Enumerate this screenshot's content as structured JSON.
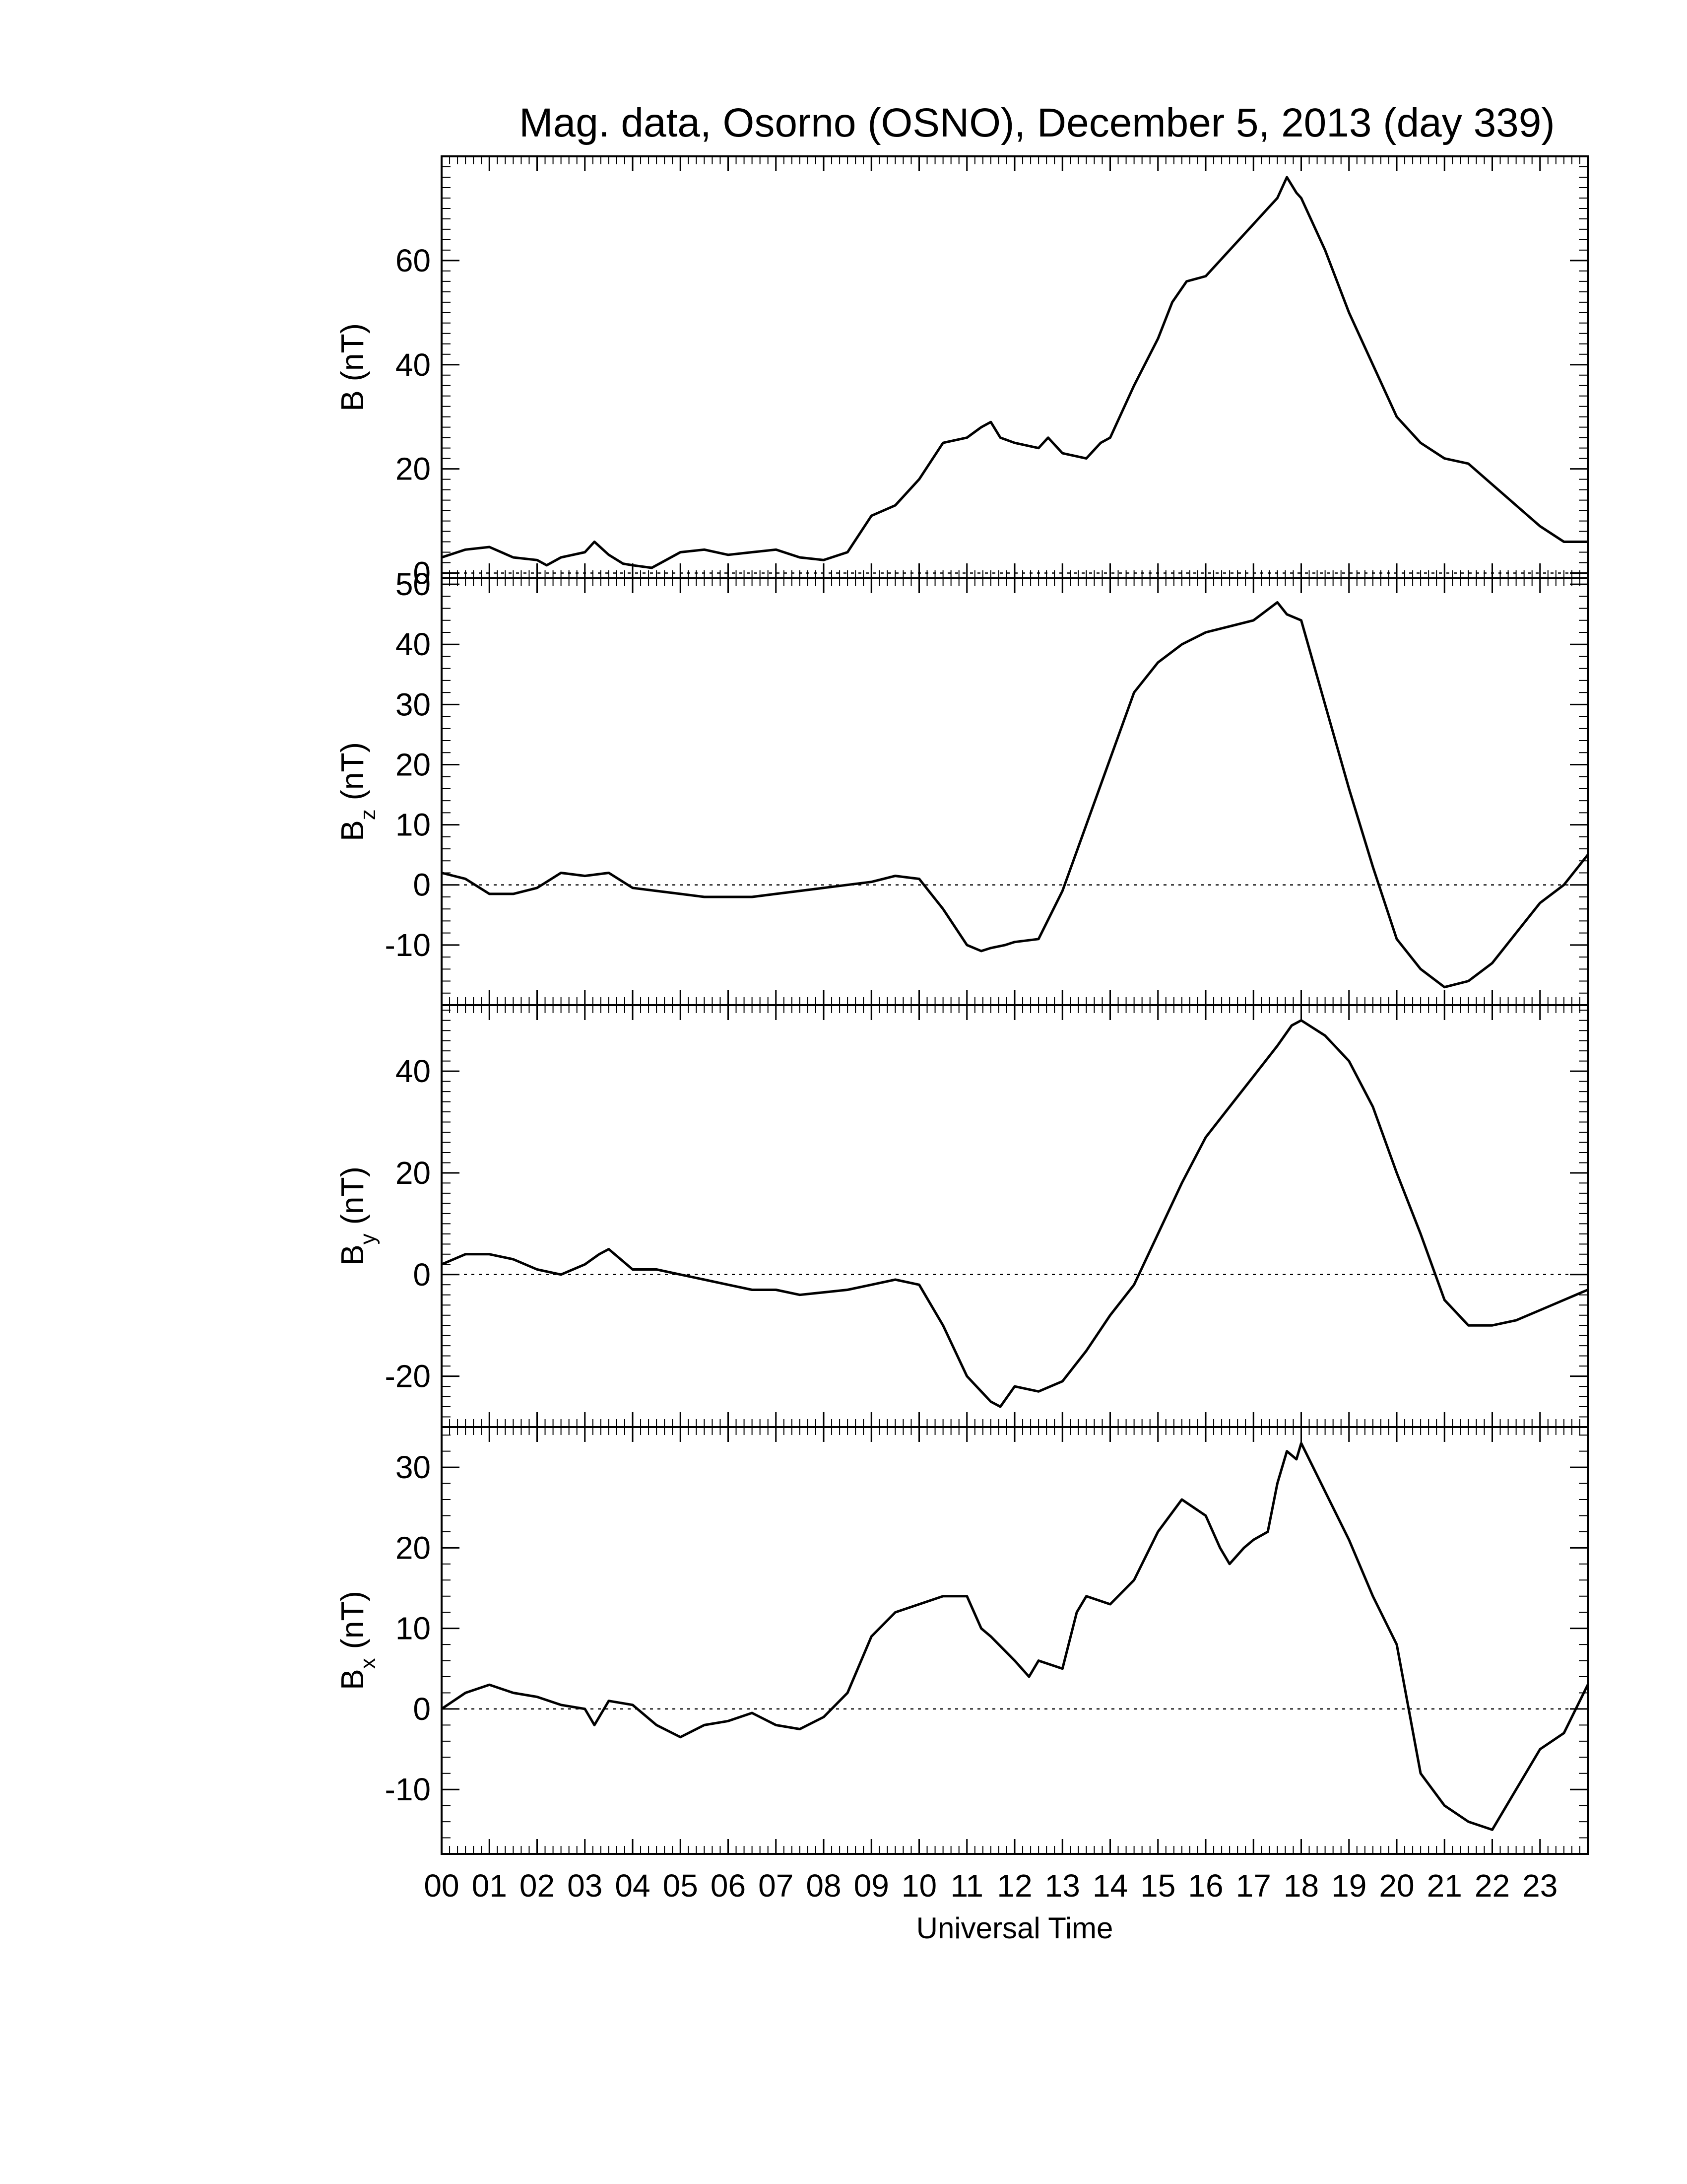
{
  "title": "Mag. data, Osorno (OSNO), December 5, 2013 (day 339)",
  "xlabel": "Universal Time",
  "x_tick_labels": [
    "00",
    "01",
    "02",
    "03",
    "04",
    "05",
    "06",
    "07",
    "08",
    "09",
    "10",
    "11",
    "12",
    "13",
    "14",
    "15",
    "16",
    "17",
    "18",
    "19",
    "20",
    "21",
    "22",
    "23"
  ],
  "line_color": "#000000",
  "chart_data": [
    {
      "type": "line",
      "ylabel_main": "B",
      "ylabel_sub": "",
      "ylabel_unit": "(nT)",
      "xlim": [
        0,
        24
      ],
      "ylim": [
        -1,
        80
      ],
      "yticks": [
        0,
        20,
        40,
        60
      ],
      "zero_line": true,
      "x": [
        0,
        0.5,
        1,
        1.5,
        2,
        2.2,
        2.5,
        3,
        3.2,
        3.5,
        3.8,
        4,
        4.4,
        4.6,
        5,
        5.5,
        6,
        6.5,
        7,
        7.5,
        8,
        8.5,
        9,
        9.5,
        10,
        10.5,
        11,
        11.3,
        11.5,
        11.7,
        12,
        12.5,
        12.7,
        13,
        13.5,
        13.8,
        14,
        14.5,
        15,
        15.3,
        15.6,
        16,
        16.3,
        16.7,
        17,
        17.3,
        17.5,
        17.7,
        17.9,
        18,
        18.5,
        19,
        19.5,
        20,
        20.5,
        21,
        21.5,
        22,
        22.5,
        23,
        23.5,
        24
      ],
      "values": [
        3,
        4.5,
        5,
        3,
        2.5,
        1.5,
        3,
        4,
        6,
        3.5,
        1.8,
        1.5,
        1,
        2,
        4,
        4.5,
        3.5,
        4,
        4.5,
        3,
        2.5,
        4,
        11,
        13,
        18,
        25,
        26,
        28,
        29,
        26,
        25,
        24,
        26,
        23,
        22,
        25,
        26,
        36,
        45,
        52,
        56,
        57,
        60,
        64,
        67,
        70,
        72,
        76,
        73,
        72,
        62,
        50,
        40,
        30,
        25,
        22,
        21,
        17,
        13,
        9,
        6,
        6
      ]
    },
    {
      "type": "line",
      "ylabel_main": "B",
      "ylabel_sub": "z",
      "ylabel_unit": "(nT)",
      "xlim": [
        0,
        24
      ],
      "ylim": [
        -20,
        51
      ],
      "yticks": [
        -10,
        0,
        10,
        20,
        30,
        40,
        50
      ],
      "zero_line": true,
      "x": [
        0,
        0.5,
        1,
        1.5,
        2,
        2.5,
        3,
        3.5,
        4,
        4.5,
        5,
        5.5,
        6,
        6.5,
        7,
        7.5,
        8,
        8.5,
        9,
        9.5,
        10,
        10.5,
        11,
        11.3,
        11.5,
        11.8,
        12,
        12.5,
        13,
        13.5,
        14,
        14.5,
        15,
        15.5,
        16,
        16.5,
        17,
        17.5,
        17.7,
        18,
        18.5,
        19,
        19.5,
        20,
        20.5,
        21,
        21.5,
        22,
        22.5,
        23,
        23.5,
        24
      ],
      "values": [
        2,
        1,
        -1.5,
        -1.5,
        -0.5,
        2,
        1.5,
        2,
        -0.5,
        -1,
        -1.5,
        -2,
        -2,
        -2,
        -1.5,
        -1,
        -0.5,
        0,
        0.5,
        1.5,
        1,
        -4,
        -10,
        -11,
        -10.5,
        -10,
        -9.5,
        -9,
        -1,
        10,
        21,
        32,
        37,
        40,
        42,
        43,
        44,
        47,
        45,
        44,
        30,
        16,
        3,
        -9,
        -14,
        -17,
        -16,
        -13,
        -8,
        -3,
        0,
        5
      ]
    },
    {
      "type": "line",
      "ylabel_main": "B",
      "ylabel_sub": "y",
      "ylabel_unit": "(nT)",
      "xlim": [
        0,
        24
      ],
      "ylim": [
        -30,
        53
      ],
      "yticks": [
        -20,
        0,
        20,
        40
      ],
      "zero_line": true,
      "x": [
        0,
        0.5,
        1,
        1.5,
        2,
        2.5,
        3,
        3.3,
        3.5,
        4,
        4.5,
        5,
        5.5,
        6,
        6.5,
        7,
        7.5,
        8,
        8.5,
        9,
        9.5,
        10,
        10.5,
        11,
        11.5,
        11.7,
        12,
        12.5,
        13,
        13.5,
        14,
        14.5,
        15,
        15.5,
        16,
        16.5,
        17,
        17.5,
        17.8,
        18,
        18.5,
        19,
        19.5,
        20,
        20.5,
        21,
        21.5,
        22,
        22.5,
        23,
        23.5,
        24
      ],
      "values": [
        2,
        4,
        4,
        3,
        1,
        0,
        2,
        4,
        5,
        1,
        1,
        0,
        -1,
        -2,
        -3,
        -3,
        -4,
        -3.5,
        -3,
        -2,
        -1,
        -2,
        -10,
        -20,
        -25,
        -26,
        -22,
        -23,
        -21,
        -15,
        -8,
        -2,
        8,
        18,
        27,
        33,
        39,
        45,
        49,
        50,
        47,
        42,
        33,
        20,
        8,
        -5,
        -10,
        -10,
        -9,
        -7,
        -5,
        -3
      ]
    },
    {
      "type": "line",
      "ylabel_main": "B",
      "ylabel_sub": "x",
      "ylabel_unit": "(nT)",
      "xlim": [
        0,
        24
      ],
      "ylim": [
        -18,
        35
      ],
      "yticks": [
        -10,
        0,
        10,
        20,
        30
      ],
      "zero_line": true,
      "x": [
        0,
        0.5,
        1,
        1.5,
        2,
        2.5,
        3,
        3.2,
        3.5,
        4,
        4.3,
        4.5,
        5,
        5.5,
        6,
        6.5,
        7,
        7.5,
        8,
        8.5,
        9,
        9.5,
        10,
        10.5,
        11,
        11.3,
        11.5,
        12,
        12.3,
        12.5,
        13,
        13.3,
        13.5,
        14,
        14.5,
        15,
        15.5,
        16,
        16.3,
        16.5,
        16.8,
        17,
        17.3,
        17.5,
        17.7,
        17.9,
        18,
        18.5,
        19,
        19.5,
        20,
        20.5,
        21,
        21.5,
        22,
        22.5,
        23,
        23.5,
        24
      ],
      "values": [
        0,
        2,
        3,
        2,
        1.5,
        0.5,
        0,
        -2,
        1,
        0.5,
        -1,
        -2,
        -3.5,
        -2,
        -1.5,
        -0.5,
        -2,
        -2.5,
        -1,
        2,
        9,
        12,
        13,
        14,
        14,
        10,
        9,
        6,
        4,
        6,
        5,
        12,
        14,
        13,
        16,
        22,
        26,
        24,
        20,
        18,
        20,
        21,
        22,
        28,
        32,
        31,
        33,
        27,
        21,
        14,
        8,
        -8,
        -12,
        -14,
        -15,
        -10,
        -5,
        -3,
        3
      ]
    }
  ]
}
